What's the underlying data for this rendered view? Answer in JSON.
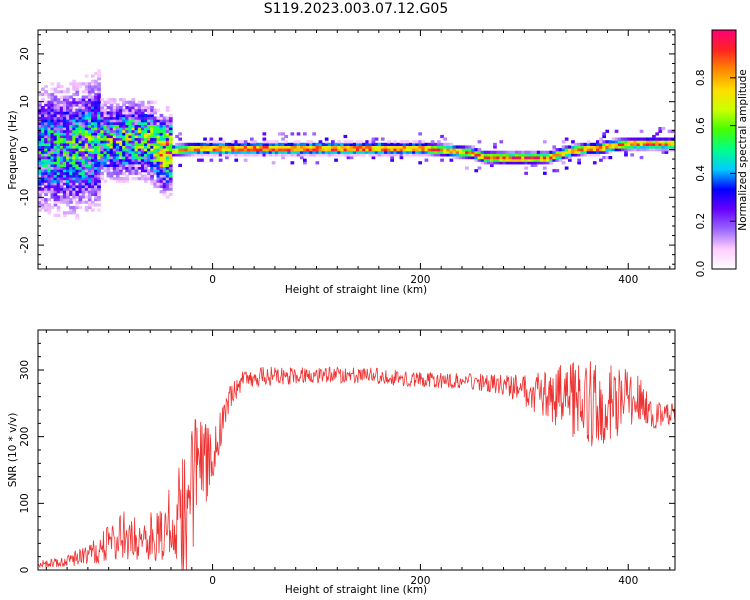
{
  "title": "S119.2023.003.07.12.G05",
  "chart_data": [
    {
      "type": "heatmap",
      "xlabel": "Height of straight line (km)",
      "ylabel": "Frequency (Hz)",
      "xlim": [
        -168,
        445
      ],
      "ylim": [
        -25,
        25
      ],
      "xticks": [
        0,
        200,
        400
      ],
      "yticks": [
        -20,
        -10,
        0,
        10,
        20
      ],
      "colorbar": {
        "label": "Normalized spectral amplitude",
        "range": [
          0.0,
          1.0
        ],
        "ticks": [
          0.0,
          0.2,
          0.4,
          0.6,
          0.8
        ],
        "colormap": [
          "#ffffff",
          "#ffccff",
          "#9966ff",
          "#6600ff",
          "#0000ff",
          "#00ccff",
          "#00ff88",
          "#44ff00",
          "#ccff00",
          "#ffdd00",
          "#ff8800",
          "#ff2222",
          "#ff0077"
        ]
      },
      "ridge": {
        "x": [
          -168,
          -140,
          -110,
          -80,
          -62,
          -50,
          -40,
          -20,
          0,
          50,
          100,
          150,
          200,
          230,
          250,
          260,
          280,
          300,
          320,
          335,
          345,
          360,
          370,
          380,
          400,
          420,
          445
        ],
        "y": [
          0.0,
          -0.5,
          1.5,
          2.0,
          1.5,
          -1.0,
          -0.5,
          0.0,
          0.0,
          0.0,
          0.0,
          0.0,
          0.0,
          -0.5,
          -1.0,
          -1.8,
          -2.0,
          -2.0,
          -2.0,
          -1.0,
          -0.5,
          0.0,
          0.0,
          0.5,
          1.0,
          1.0,
          1.0
        ],
        "amplitude": [
          0.4,
          0.45,
          0.5,
          0.55,
          0.55,
          0.7,
          0.75,
          0.85,
          0.9,
          0.9,
          0.9,
          0.88,
          0.87,
          0.85,
          0.85,
          0.85,
          0.9,
          0.9,
          0.88,
          0.8,
          0.82,
          0.85,
          0.86,
          0.85,
          0.88,
          0.87,
          0.85
        ]
      }
    },
    {
      "type": "line",
      "color": "#ee3333",
      "xlabel": "Height of straight line (km)",
      "ylabel": "SNR (10 * v/v)",
      "xlim": [
        -168,
        445
      ],
      "ylim": [
        0,
        360
      ],
      "xticks": [
        0,
        200,
        400
      ],
      "yticks": [
        0,
        100,
        200,
        300
      ],
      "x": [
        -168,
        -150,
        -130,
        -110,
        -95,
        -80,
        -70,
        -60,
        -50,
        -40,
        -35,
        -30,
        -25,
        -20,
        -15,
        -10,
        -5,
        0,
        5,
        10,
        15,
        20,
        30,
        50,
        100,
        150,
        200,
        250,
        280,
        300,
        320,
        330,
        340,
        350,
        360,
        370,
        380,
        390,
        400,
        410,
        420,
        430,
        445
      ],
      "mean": [
        8,
        12,
        18,
        30,
        45,
        55,
        40,
        50,
        60,
        65,
        70,
        80,
        110,
        120,
        140,
        150,
        165,
        170,
        190,
        230,
        250,
        270,
        285,
        290,
        293,
        292,
        285,
        283,
        278,
        268,
        265,
        262,
        260,
        255,
        250,
        248,
        250,
        252,
        255,
        258,
        235,
        232,
        235
      ],
      "amplitude": [
        5,
        8,
        12,
        20,
        35,
        40,
        25,
        40,
        45,
        60,
        70,
        100,
        120,
        130,
        90,
        80,
        60,
        45,
        40,
        30,
        20,
        18,
        15,
        15,
        12,
        12,
        12,
        12,
        15,
        25,
        35,
        45,
        55,
        60,
        65,
        65,
        60,
        55,
        45,
        35,
        25,
        20,
        15
      ]
    }
  ]
}
